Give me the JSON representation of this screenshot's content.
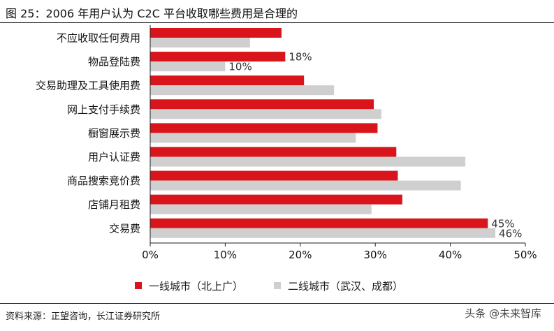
{
  "title": "图 25：2006 年用户认为 C2C 平台收取哪些费用是合理的",
  "source": "资料来源：正望咨询，长江证券研究所",
  "watermark": "头条 @未来智库",
  "chart_data": {
    "type": "bar",
    "orientation": "horizontal",
    "categories": [
      "不应收取任何费用",
      "物品登陆费",
      "交易助理及工具使用费",
      "网上支付手续费",
      "橱窗展示费",
      "用户认证费",
      "商品搜索竞价费",
      "店铺月租费",
      "交易费"
    ],
    "series": [
      {
        "name": "一线城市（北上广）",
        "color": "#d9141a",
        "values": [
          17.5,
          18,
          20.5,
          29.8,
          30.3,
          32.8,
          33,
          33.6,
          45
        ]
      },
      {
        "name": "二线城市（武汉、成都）",
        "color": "#cfcfcf",
        "values": [
          13.3,
          10,
          24.5,
          30.8,
          27.4,
          42,
          41.4,
          29.5,
          46
        ]
      }
    ],
    "data_labels": [
      {
        "category_index": 1,
        "series_index": 0,
        "text": "18%"
      },
      {
        "category_index": 1,
        "series_index": 1,
        "text": "10%"
      },
      {
        "category_index": 8,
        "series_index": 0,
        "text": "45%"
      },
      {
        "category_index": 8,
        "series_index": 1,
        "text": "46%"
      }
    ],
    "x_ticks": [
      "0%",
      "10%",
      "20%",
      "30%",
      "40%",
      "50%"
    ],
    "xlim": [
      0,
      50
    ],
    "legend_position": "bottom",
    "grid": false
  }
}
